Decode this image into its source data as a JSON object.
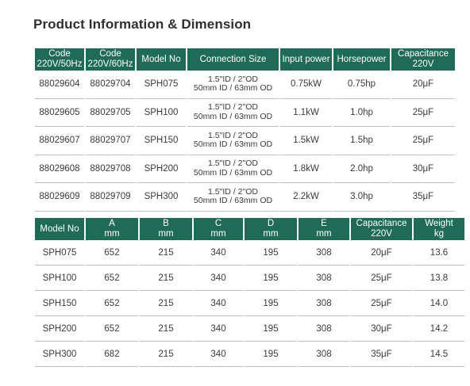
{
  "title": "Product Information & Dimension",
  "table1": {
    "headers": [
      [
        "Code",
        "220V/50Hz"
      ],
      [
        "Code",
        "220V/60Hz"
      ],
      [
        "Model No",
        ""
      ],
      [
        "Connection Size",
        ""
      ],
      [
        "Input power",
        ""
      ],
      [
        "Horsepower",
        ""
      ],
      [
        "Capacitance",
        "220V"
      ]
    ],
    "rows": [
      {
        "code50": "88029604",
        "code60": "88029704",
        "model": "SPH075",
        "conn1": "1.5\"ID / 2\"OD",
        "conn2": "50mm ID / 63mm OD",
        "power": "0.75kW",
        "hp": "0.75hp",
        "cap": "20μF"
      },
      {
        "code50": "88029605",
        "code60": "88029705",
        "model": "SPH100",
        "conn1": "1.5\"ID / 2\"OD",
        "conn2": "50mm ID / 63mm OD",
        "power": "1.1kW",
        "hp": "1.0hp",
        "cap": "25μF"
      },
      {
        "code50": "88029607",
        "code60": "88029707",
        "model": "SPH150",
        "conn1": "1.5\"ID / 2\"OD",
        "conn2": "50mm ID / 63mm OD",
        "power": "1.5kW",
        "hp": "1.5hp",
        "cap": "25μF"
      },
      {
        "code50": "88029608",
        "code60": "88029708",
        "model": "SPH200",
        "conn1": "1.5\"ID / 2\"OD",
        "conn2": "50mm ID / 63mm OD",
        "power": "1.8kW",
        "hp": "2.0hp",
        "cap": "30μF"
      },
      {
        "code50": "88029609",
        "code60": "88029709",
        "model": "SPH300",
        "conn1": "1.5\"ID / 2\"OD",
        "conn2": "50mm ID / 63mm OD",
        "power": "2.2kW",
        "hp": "3.0hp",
        "cap": "35μF"
      }
    ]
  },
  "table2": {
    "headers": [
      [
        "Model No",
        ""
      ],
      [
        "A",
        "mm"
      ],
      [
        "B",
        "mm"
      ],
      [
        "C",
        "mm"
      ],
      [
        "D",
        "mm"
      ],
      [
        "E",
        "mm"
      ],
      [
        "Capacitance",
        "220V"
      ],
      [
        "Weight",
        "kg"
      ]
    ],
    "rows": [
      {
        "model": "SPH075",
        "a": "652",
        "b": "215",
        "c": "340",
        "d": "195",
        "e": "308",
        "cap": "20μF",
        "weight": "13.6"
      },
      {
        "model": "SPH100",
        "a": "652",
        "b": "215",
        "c": "340",
        "d": "195",
        "e": "308",
        "cap": "25μF",
        "weight": "13.8"
      },
      {
        "model": "SPH150",
        "a": "652",
        "b": "215",
        "c": "340",
        "d": "195",
        "e": "308",
        "cap": "25μF",
        "weight": "14.0"
      },
      {
        "model": "SPH200",
        "a": "652",
        "b": "215",
        "c": "340",
        "d": "195",
        "e": "308",
        "cap": "30μF",
        "weight": "14.2"
      },
      {
        "model": "SPH300",
        "a": "682",
        "b": "215",
        "c": "340",
        "d": "195",
        "e": "308",
        "cap": "35μF",
        "weight": "14.5"
      }
    ]
  }
}
